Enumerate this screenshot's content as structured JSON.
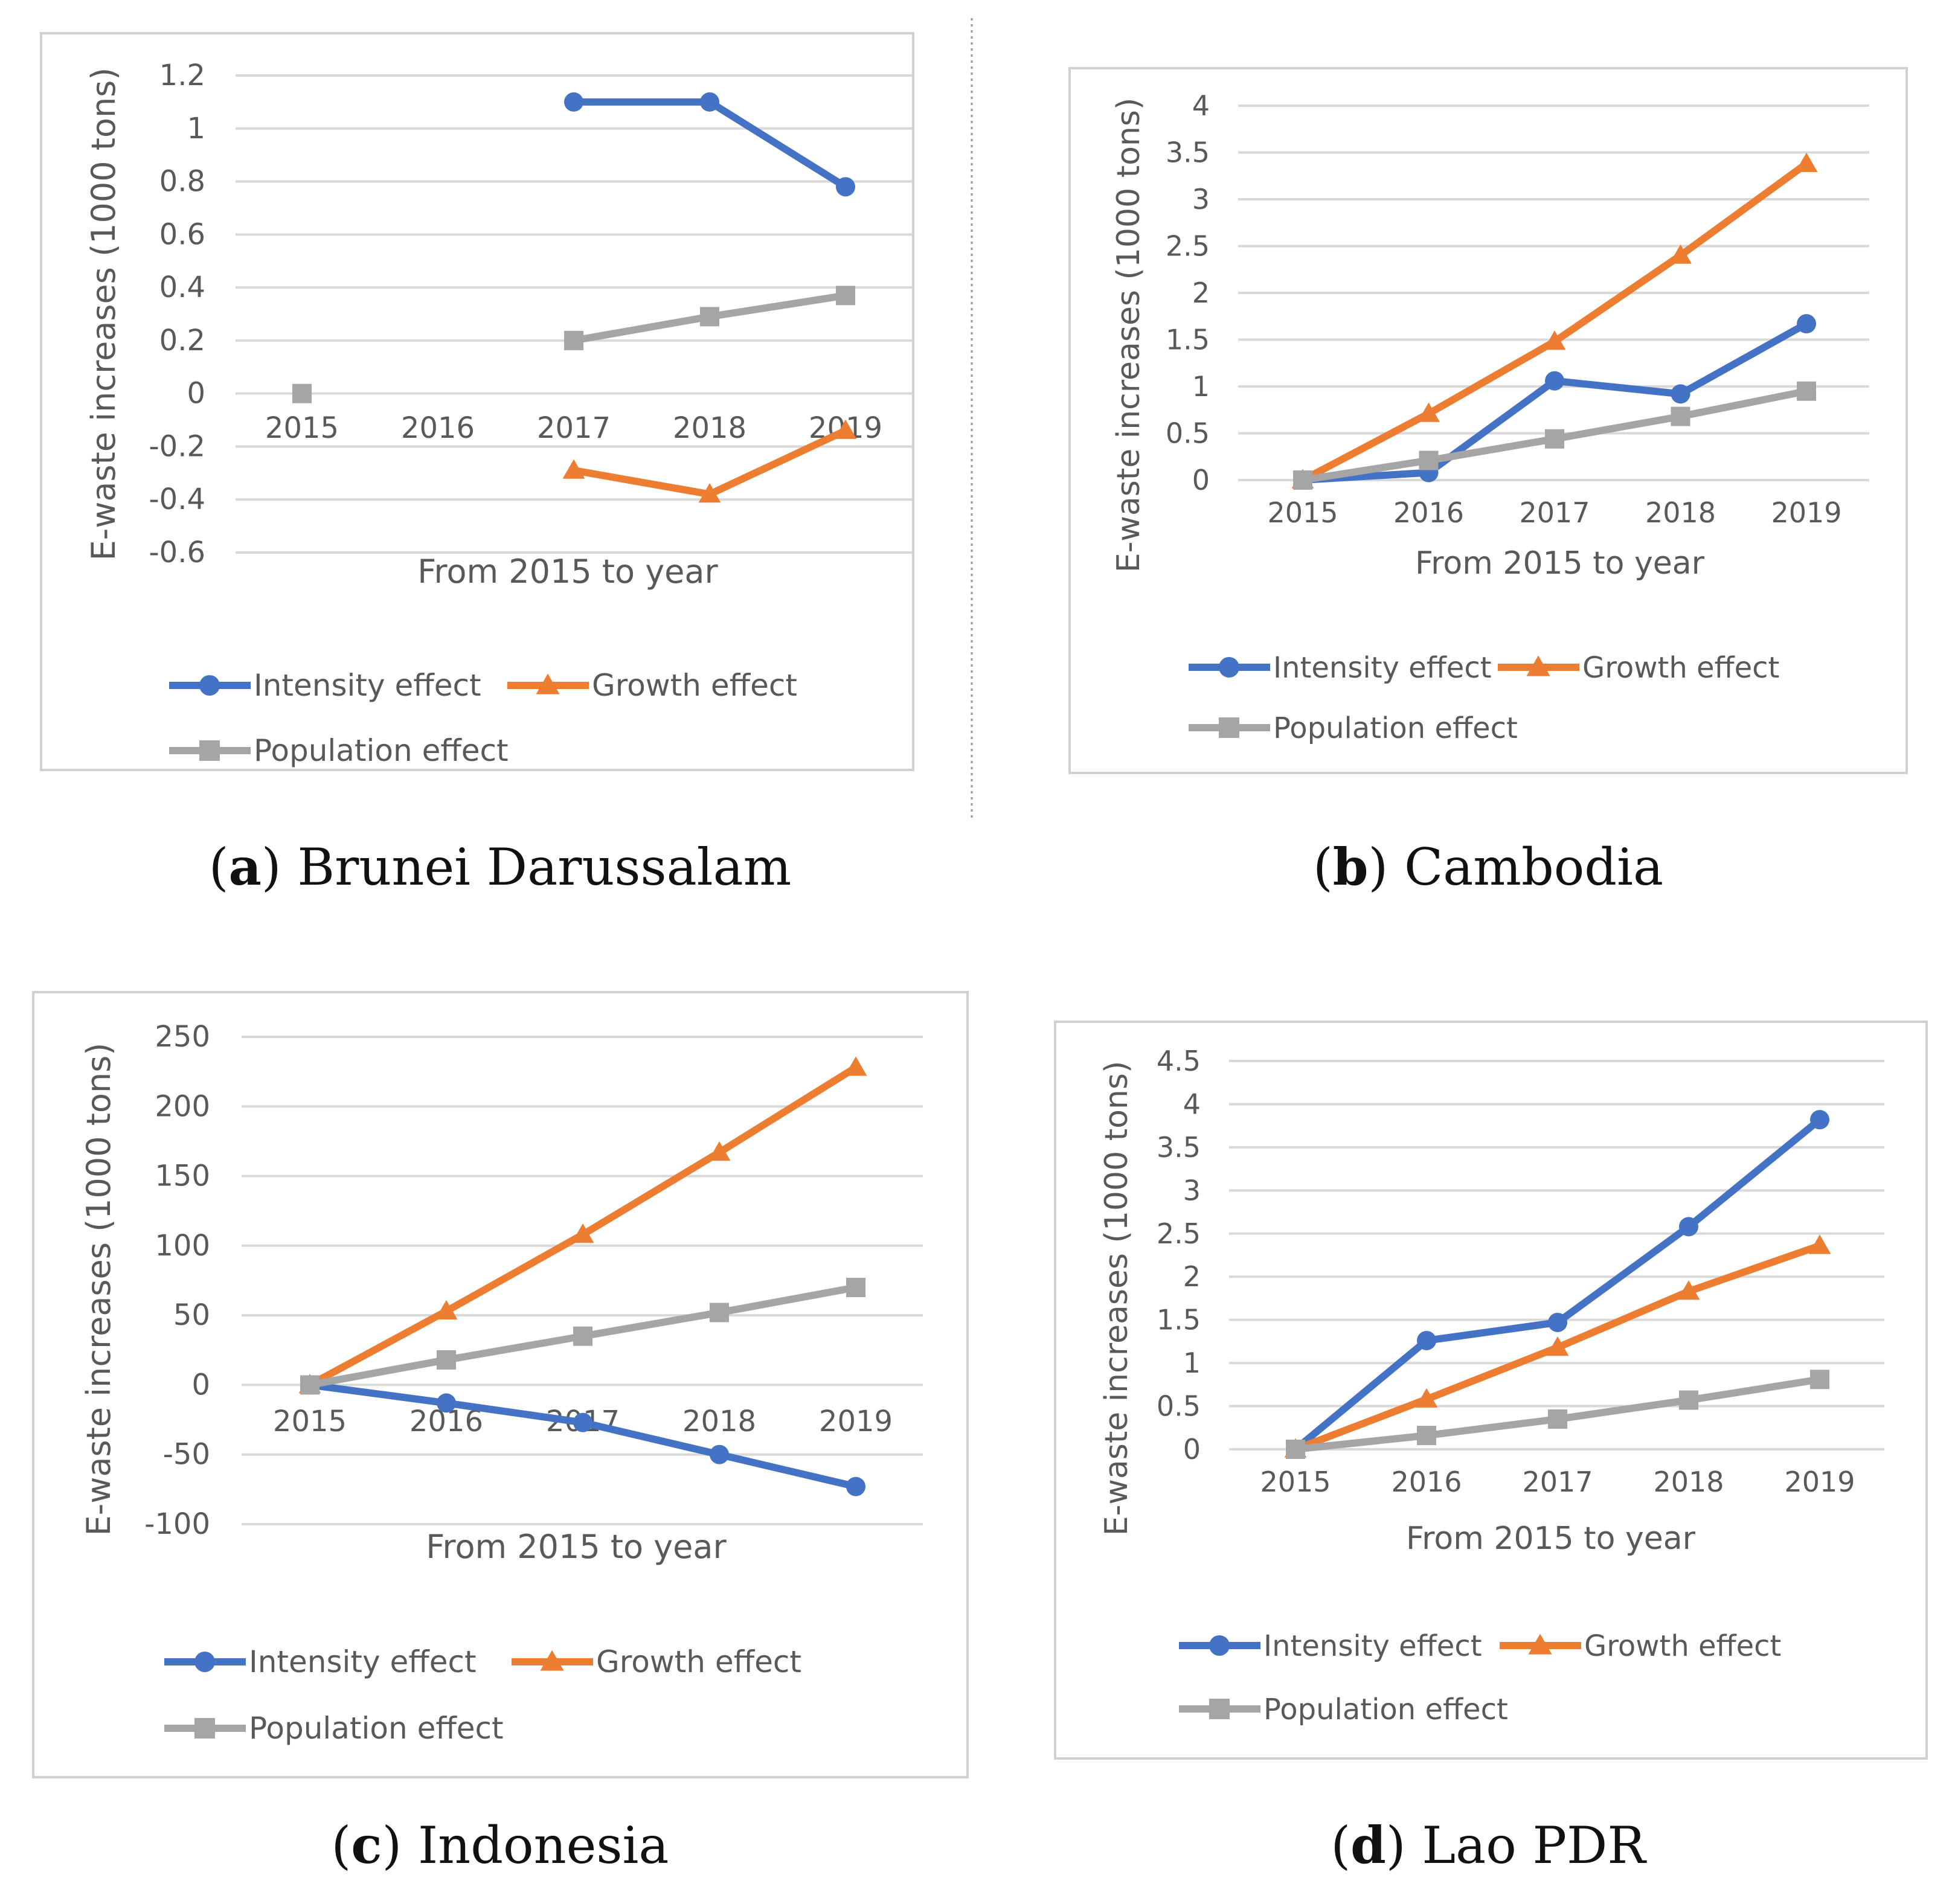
{
  "colors": {
    "intensity": "#4472C4",
    "growth": "#ED7D31",
    "population": "#A5A5A5",
    "grid": "#D9D9D9",
    "frame": "#D0D0D0",
    "text": "#595959"
  },
  "legend_labels": {
    "intensity": "Intensity effect",
    "growth": "Growth effect",
    "population": "Population effect"
  },
  "chart_data": [
    {
      "type": "line",
      "caption_letter": "a",
      "caption_text": ") Brunei Darussalam",
      "caption_open": "(",
      "xlabel": "From 2015 to year",
      "ylabel": "E-waste increases (1000 tons)",
      "categories": [
        "2015",
        "2016",
        "2017",
        "2018",
        "2019"
      ],
      "ylim": [
        -0.6,
        1.2
      ],
      "yticks": [
        -0.6,
        -0.4,
        -0.2,
        0,
        0.2,
        0.4,
        0.6,
        0.8,
        1,
        1.2
      ],
      "ytick_labels": [
        "-0.6",
        "-0.4",
        "-0.2",
        "0",
        "0.2",
        "0.4",
        "0.6",
        "0.8",
        "1",
        "1.2"
      ],
      "series": [
        {
          "key": "intensity",
          "name": "Intensity effect",
          "marker": "circle",
          "values": [
            null,
            null,
            1.1,
            1.1,
            0.78
          ]
        },
        {
          "key": "growth",
          "name": "Growth effect",
          "marker": "triangle",
          "values": [
            null,
            null,
            -0.29,
            -0.38,
            -0.14
          ]
        },
        {
          "key": "population",
          "name": "Population effect",
          "marker": "square",
          "values": [
            0,
            null,
            0.2,
            0.29,
            0.37
          ]
        }
      ]
    },
    {
      "type": "line",
      "caption_letter": "b",
      "caption_text": ") Cambodia",
      "caption_open": "(",
      "xlabel": "From 2015 to year",
      "ylabel": "E-waste increases (1000 tons)",
      "categories": [
        "2015",
        "2016",
        "2017",
        "2018",
        "2019"
      ],
      "ylim": [
        0,
        4
      ],
      "yticks": [
        0,
        0.5,
        1,
        1.5,
        2,
        2.5,
        3,
        3.5,
        4
      ],
      "ytick_labels": [
        "0",
        "0.5",
        "1",
        "1.5",
        "2",
        "2.5",
        "3",
        "3.5",
        "4"
      ],
      "series": [
        {
          "key": "intensity",
          "name": "Intensity effect",
          "marker": "circle",
          "values": [
            0,
            0.08,
            1.06,
            0.92,
            1.67
          ]
        },
        {
          "key": "growth",
          "name": "Growth effect",
          "marker": "triangle",
          "values": [
            0,
            0.71,
            1.48,
            2.4,
            3.38
          ]
        },
        {
          "key": "population",
          "name": "Population effect",
          "marker": "square",
          "values": [
            0,
            0.21,
            0.44,
            0.68,
            0.95
          ]
        }
      ]
    },
    {
      "type": "line",
      "caption_letter": "c",
      "caption_text": ") Indonesia",
      "caption_open": "(",
      "xlabel": "From 2015 to year",
      "ylabel": "E-waste increases (1000 tons)",
      "categories": [
        "2015",
        "2016",
        "2017",
        "2018",
        "2019"
      ],
      "ylim": [
        -100,
        250
      ],
      "yticks": [
        -100,
        -50,
        0,
        50,
        100,
        150,
        200,
        250
      ],
      "ytick_labels": [
        "-100",
        "-50",
        "0",
        "50",
        "100",
        "150",
        "200",
        "250"
      ],
      "series": [
        {
          "key": "intensity",
          "name": "Intensity effect",
          "marker": "circle",
          "values": [
            0,
            -13,
            -27,
            -50,
            -73
          ]
        },
        {
          "key": "growth",
          "name": "Growth effect",
          "marker": "triangle",
          "values": [
            0,
            53,
            108,
            167,
            228
          ]
        },
        {
          "key": "population",
          "name": "Population effect",
          "marker": "square",
          "values": [
            0,
            18,
            35,
            52,
            70
          ]
        }
      ]
    },
    {
      "type": "line",
      "caption_letter": "d",
      "caption_text": ") Lao PDR",
      "caption_open": "(",
      "xlabel": "From 2015 to year",
      "ylabel": "E-waste increases (1000 tons)",
      "categories": [
        "2015",
        "2016",
        "2017",
        "2018",
        "2019"
      ],
      "ylim": [
        0,
        4.5
      ],
      "yticks": [
        0,
        0.5,
        1,
        1.5,
        2,
        2.5,
        3,
        3.5,
        4,
        4.5
      ],
      "ytick_labels": [
        "0",
        "0.5",
        "1",
        "1.5",
        "2",
        "2.5",
        "3",
        "3.5",
        "4",
        "4.5"
      ],
      "series": [
        {
          "key": "intensity",
          "name": "Intensity effect",
          "marker": "circle",
          "values": [
            0,
            1.26,
            1.47,
            2.58,
            3.82
          ]
        },
        {
          "key": "growth",
          "name": "Growth effect",
          "marker": "triangle",
          "values": [
            0,
            0.58,
            1.18,
            1.83,
            2.36
          ]
        },
        {
          "key": "population",
          "name": "Population effect",
          "marker": "square",
          "values": [
            0,
            0.16,
            0.35,
            0.57,
            0.81
          ]
        }
      ]
    }
  ]
}
